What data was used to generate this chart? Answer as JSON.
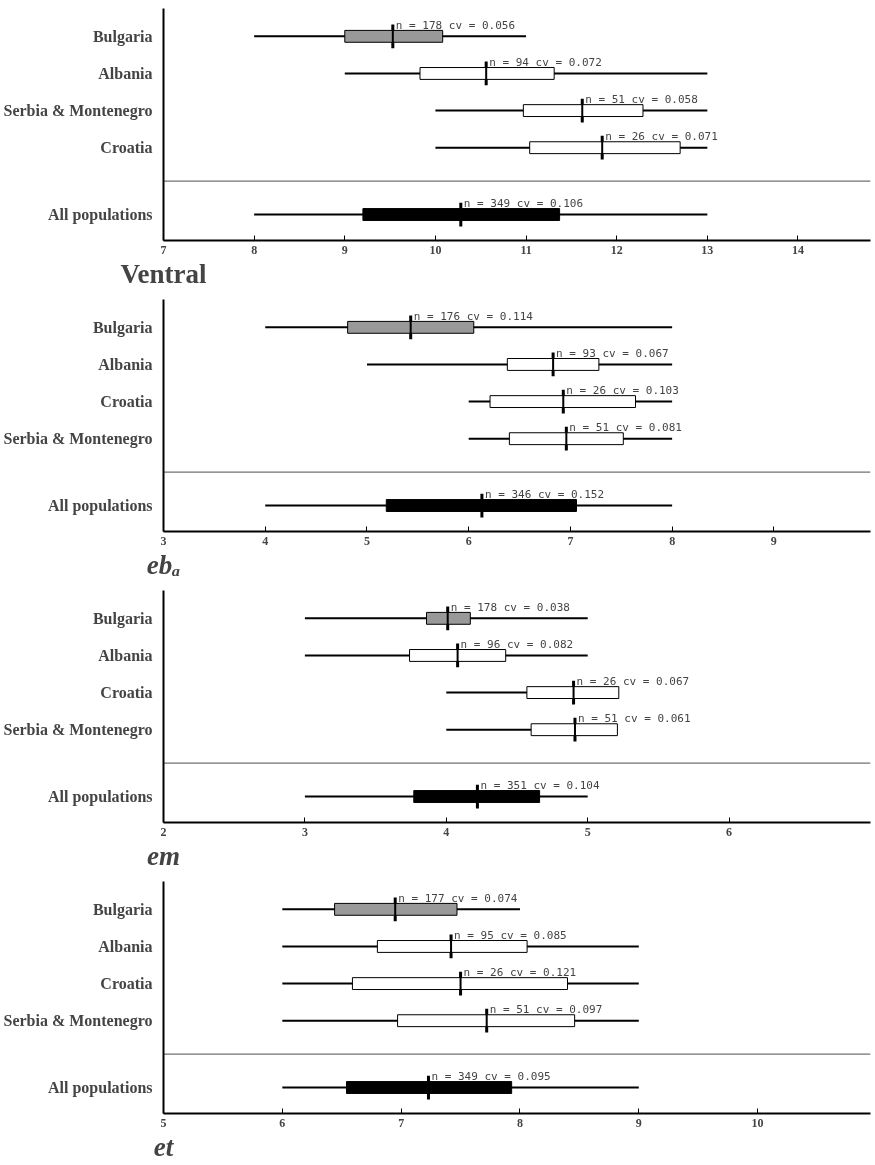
{
  "chart_data": [
    {
      "type": "box",
      "orientation": "horizontal",
      "xlabel": "Ventral",
      "categories": [
        "Bulgaria",
        "Albania",
        "Serbia & Montenegro",
        "Croatia",
        "All populations"
      ],
      "colors": [
        "#999999",
        "#ffffff",
        "#ffffff",
        "#ffffff",
        "#000000"
      ],
      "boxes": [
        {
          "low": 8,
          "q1": 9.0,
          "median": 9.53,
          "q3": 10.08,
          "high": 11
        },
        {
          "low": 9,
          "q1": 9.83,
          "median": 10.56,
          "q3": 11.31,
          "high": 13
        },
        {
          "low": 10,
          "q1": 10.97,
          "median": 11.62,
          "q3": 12.29,
          "high": 13
        },
        {
          "low": 10,
          "q1": 11.04,
          "median": 11.84,
          "q3": 12.7,
          "high": 13
        },
        {
          "low": 8,
          "q1": 9.2,
          "median": 10.28,
          "q3": 11.37,
          "high": 13
        }
      ],
      "xlim": [
        7,
        14.8
      ],
      "xticks": [
        7,
        8,
        9,
        10,
        11,
        12,
        13,
        14
      ],
      "annotations": [
        {
          "text": "n = 178 cv = 0.056",
          "x": 9.53,
          "y": "Bulgaria"
        },
        {
          "text": "n = 94 cv = 0.072",
          "x": 10.56,
          "y": "Albania"
        },
        {
          "text": "n = 51 cv = 0.058",
          "x": 11.62,
          "y": "Serbia & Montenegro"
        },
        {
          "text": "n = 26 cv = 0.071",
          "x": 11.84,
          "y": "Croatia"
        },
        {
          "text": "n = 349 cv = 0.106",
          "x": 10.28,
          "y": "All populations"
        }
      ]
    },
    {
      "type": "box",
      "orientation": "horizontal",
      "xlabel": "ebₐ",
      "categories": [
        "Bulgaria",
        "Albania",
        "Croatia",
        "Serbia & Montenegro",
        "All populations"
      ],
      "colors": [
        "#999999",
        "#ffffff",
        "#ffffff",
        "#ffffff",
        "#000000"
      ],
      "boxes": [
        {
          "low": 4,
          "q1": 4.81,
          "median": 5.43,
          "q3": 6.05,
          "high": 8
        },
        {
          "low": 5,
          "q1": 6.38,
          "median": 6.83,
          "q3": 7.28,
          "high": 8
        },
        {
          "low": 6,
          "q1": 6.21,
          "median": 6.93,
          "q3": 7.64,
          "high": 8
        },
        {
          "low": 6,
          "q1": 6.4,
          "median": 6.96,
          "q3": 7.52,
          "high": 8
        },
        {
          "low": 4,
          "q1": 5.19,
          "median": 6.13,
          "q3": 7.06,
          "high": 8
        }
      ],
      "xlim": [
        3,
        9.95
      ],
      "xticks": [
        3,
        4,
        5,
        6,
        7,
        8,
        9
      ],
      "annotations": [
        {
          "text": "n = 176 cv = 0.114",
          "x": 5.43,
          "y": "Bulgaria"
        },
        {
          "text": "n = 93 cv = 0.067",
          "x": 6.83,
          "y": "Albania"
        },
        {
          "text": "n = 26 cv = 0.103",
          "x": 6.93,
          "y": "Croatia"
        },
        {
          "text": "n = 51 cv = 0.081",
          "x": 6.96,
          "y": "Serbia & Montenegro"
        },
        {
          "text": "n = 346 cv = 0.152",
          "x": 6.13,
          "y": "All populations"
        }
      ]
    },
    {
      "type": "box",
      "orientation": "horizontal",
      "xlabel": "em",
      "categories": [
        "Bulgaria",
        "Albania",
        "Croatia",
        "Serbia & Montenegro",
        "All populations"
      ],
      "colors": [
        "#999999",
        "#ffffff",
        "#ffffff",
        "#ffffff",
        "#000000"
      ],
      "boxes": [
        {
          "low": 3,
          "q1": 3.86,
          "median": 4.01,
          "q3": 4.17,
          "high": 5
        },
        {
          "low": 3,
          "q1": 3.74,
          "median": 4.08,
          "q3": 4.42,
          "high": 5
        },
        {
          "low": 4,
          "q1": 4.57,
          "median": 4.9,
          "q3": 5.22,
          "high": 5.22
        },
        {
          "low": 4,
          "q1": 4.6,
          "median": 4.91,
          "q3": 5.21,
          "high": 5.21
        },
        {
          "low": 3,
          "q1": 3.77,
          "median": 4.22,
          "q3": 4.66,
          "high": 5
        }
      ],
      "xlim": [
        2,
        7
      ],
      "xticks": [
        2,
        3,
        4,
        5,
        6
      ],
      "annotations": [
        {
          "text": "n = 178 cv = 0.038",
          "x": 4.01,
          "y": "Bulgaria"
        },
        {
          "text": "n = 96 cv = 0.082",
          "x": 4.08,
          "y": "Albania"
        },
        {
          "text": "n = 26 cv = 0.067",
          "x": 4.9,
          "y": "Croatia"
        },
        {
          "text": "n = 51 cv = 0.061",
          "x": 4.91,
          "y": "Serbia & Montenegro"
        },
        {
          "text": "n = 351 cv = 0.104",
          "x": 4.22,
          "y": "All populations"
        }
      ]
    },
    {
      "type": "box",
      "orientation": "horizontal",
      "xlabel": "et",
      "categories": [
        "Bulgaria",
        "Albania",
        "Croatia",
        "Serbia & Montenegro",
        "All populations"
      ],
      "colors": [
        "#999999",
        "#ffffff",
        "#ffffff",
        "#ffffff",
        "#000000"
      ],
      "boxes": [
        {
          "low": 6,
          "q1": 6.44,
          "median": 6.95,
          "q3": 7.47,
          "high": 8
        },
        {
          "low": 6,
          "q1": 6.8,
          "median": 7.42,
          "q3": 8.06,
          "high": 9
        },
        {
          "low": 6,
          "q1": 6.59,
          "median": 7.5,
          "q3": 8.4,
          "high": 9
        },
        {
          "low": 6,
          "q1": 6.97,
          "median": 7.72,
          "q3": 8.46,
          "high": 9
        },
        {
          "low": 6,
          "q1": 6.54,
          "median": 7.23,
          "q3": 7.93,
          "high": 9
        }
      ],
      "xlim": [
        5,
        10.95
      ],
      "xticks": [
        5,
        6,
        7,
        8,
        9,
        10
      ],
      "annotations": [
        {
          "text": "n = 177 cv = 0.074",
          "x": 6.95,
          "y": "Bulgaria"
        },
        {
          "text": "n = 95 cv = 0.085",
          "x": 7.42,
          "y": "Albania"
        },
        {
          "text": "n = 26 cv = 0.121",
          "x": 7.5,
          "y": "Croatia"
        },
        {
          "text": "n = 51 cv = 0.097",
          "x": 7.72,
          "y": "Serbia & Montenegro"
        },
        {
          "text": "n = 349 cv = 0.095",
          "x": 7.23,
          "y": "All populations"
        }
      ]
    }
  ]
}
